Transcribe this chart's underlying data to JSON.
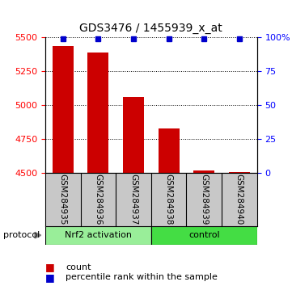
{
  "title": "GDS3476 / 1455939_x_at",
  "samples": [
    "GSM284935",
    "GSM284936",
    "GSM284937",
    "GSM284938",
    "GSM284939",
    "GSM284940"
  ],
  "counts": [
    5435,
    5390,
    5060,
    4830,
    4520,
    4506
  ],
  "percentile_ranks": [
    99,
    99,
    99,
    99,
    99,
    99
  ],
  "ylim_left": [
    4500,
    5500
  ],
  "ylim_right": [
    0,
    100
  ],
  "yticks_left": [
    4500,
    4750,
    5000,
    5250,
    5500
  ],
  "yticks_right": [
    0,
    25,
    50,
    75,
    100
  ],
  "groups": [
    {
      "label": "Nrf2 activation",
      "indices": [
        0,
        1,
        2
      ],
      "color": "#99EE99"
    },
    {
      "label": "control",
      "indices": [
        3,
        4,
        5
      ],
      "color": "#44DD44"
    }
  ],
  "bar_color": "#CC0000",
  "marker_color": "#0000CC",
  "bar_width": 0.6,
  "background_color": "#ffffff",
  "plot_bg_color": "#ffffff",
  "sample_bg_color": "#C8C8C8",
  "protocol_label": "protocol",
  "legend_count_label": "count",
  "legend_percentile_label": "percentile rank within the sample"
}
